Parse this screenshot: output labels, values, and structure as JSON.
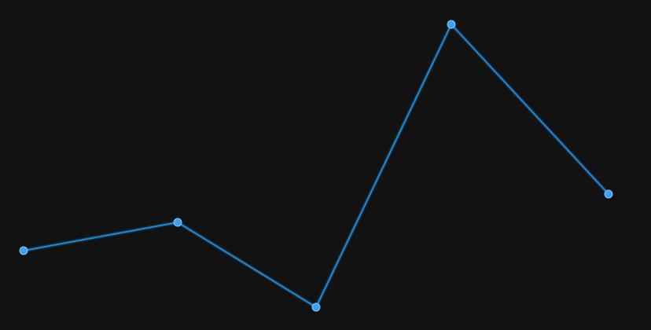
{
  "chart_data": {
    "type": "line",
    "title": "",
    "xlabel": "",
    "ylabel": "",
    "x": [
      1,
      2,
      3,
      4,
      5
    ],
    "series": [
      {
        "values": [
          0.2,
          0.3,
          0,
          1.0,
          0.4
        ]
      }
    ],
    "xlim": [
      1,
      5
    ],
    "ylim": [
      0,
      1
    ],
    "grid": false,
    "legend": "none",
    "colors": {
      "background": "#121212",
      "line": "#1e88d6",
      "glow": "#35a7ff",
      "point_fill": "#3ea0f0",
      "point_stroke": "#7cc6ff"
    }
  }
}
